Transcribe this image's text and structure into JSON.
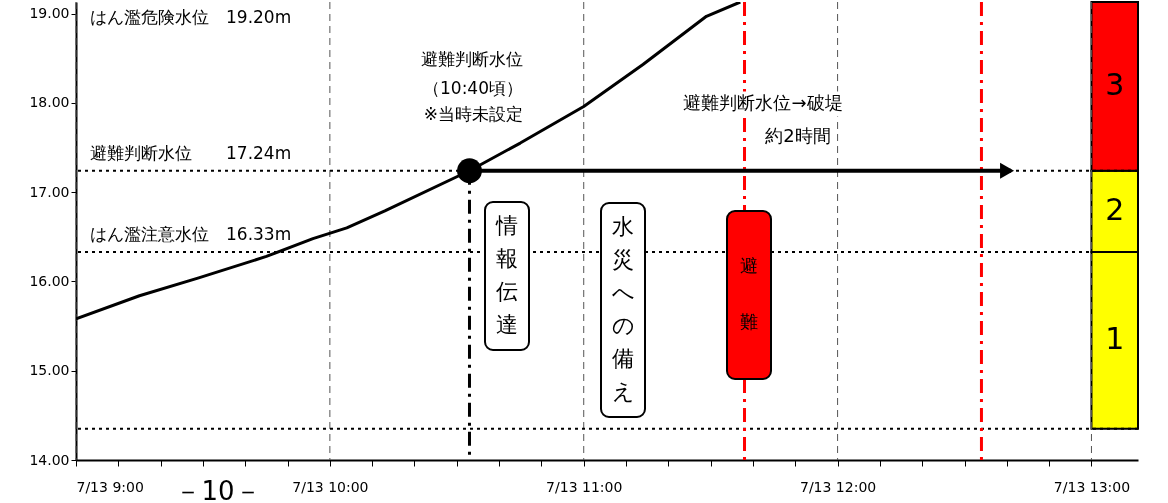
{
  "chart_data": {
    "type": "line",
    "x": [
      "--07-13T09:00",
      "--07-13T09:15",
      "--07-13T09:29",
      "--07-13T09:45",
      "--07-13T09:56",
      "--07-13T10:04",
      "--07-13T10:13",
      "--07-13T10:33",
      "--07-13T10:45",
      "--07-13T11:00",
      "--07-13T11:14",
      "--07-13T11:29",
      "--07-13T11:37"
    ],
    "series": [
      {
        "color": "#000000",
        "values": [
          15.58,
          15.84,
          16.04,
          16.28,
          16.48,
          16.6,
          16.79,
          17.24,
          17.55,
          17.96,
          18.43,
          18.97,
          19.13
        ]
      },
      {
        "type": "scatter",
        "color": "#000000",
        "x": [
          "--07-13T10:33"
        ],
        "values": [
          17.24
        ]
      }
    ],
    "xlim": [
      "--07-13T09:00",
      "--07-13T13:11"
    ],
    "ylim": [
      14,
      19.13
    ],
    "xticks": [
      {
        "value": "--07-13T09:00",
        "label": "7/13 9:00"
      },
      {
        "value": "--07-13T09:10",
        "label": null
      },
      {
        "value": "--07-13T09:20",
        "label": null
      },
      {
        "value": "--07-13T09:30",
        "label": null
      },
      {
        "value": "--07-13T09:40",
        "label": null
      },
      {
        "value": "--07-13T09:50",
        "label": null
      },
      {
        "value": "--07-13T10:00",
        "label": "7/13 10:00"
      },
      {
        "value": "--07-13T10:10",
        "label": null
      },
      {
        "value": "--07-13T10:20",
        "label": null
      },
      {
        "value": "--07-13T10:30",
        "label": null
      },
      {
        "value": "--07-13T10:40",
        "label": null
      },
      {
        "value": "--07-13T10:50",
        "label": null
      },
      {
        "value": "--07-13T11:00",
        "label": "7/13 11:00"
      },
      {
        "value": "--07-13T11:10",
        "label": null
      },
      {
        "value": "--07-13T11:20",
        "label": null
      },
      {
        "value": "--07-13T11:30",
        "label": null
      },
      {
        "value": "--07-13T11:40",
        "label": null
      },
      {
        "value": "--07-13T11:50",
        "label": null
      },
      {
        "value": "--07-13T12:00",
        "label": "7/13 12:00"
      },
      {
        "value": "--07-13T12:10",
        "label": null
      },
      {
        "value": "--07-13T12:20",
        "label": null
      },
      {
        "value": "--07-13T12:30",
        "label": null
      },
      {
        "value": "--07-13T12:40",
        "label": null
      },
      {
        "value": "--07-13T12:50",
        "label": null
      },
      {
        "value": "--07-13T13:00",
        "label": "7/13 13:00"
      }
    ],
    "yticks": [
      {
        "value": 14,
        "label": "14.00"
      },
      {
        "value": 15,
        "label": "15.00"
      },
      {
        "value": 16,
        "label": "16.00"
      },
      {
        "value": 17,
        "label": "17.00"
      },
      {
        "value": 18,
        "label": "18.00"
      },
      {
        "value": 19,
        "label": "19.00"
      }
    ],
    "grid": "x",
    "ref_lines": [
      {
        "axis": "y",
        "value": 17.24,
        "label": "避難判断水位　　17.24m",
        "color": "#000000",
        "line_style": "dotted"
      },
      {
        "axis": "y",
        "value": 16.33,
        "label": "はん濫注意水位　16.33m",
        "color": "#000000",
        "line_style": "dotted"
      },
      {
        "axis": "y",
        "value": 14.35,
        "color": "#000000",
        "line_style": "dotted"
      },
      {
        "axis": "x",
        "value": "--07-13T10:33",
        "color": "#000000",
        "line_style": "dashed"
      },
      {
        "axis": "x",
        "value": "--07-13T11:38",
        "color": "#ff0000",
        "line_style": "dashed"
      },
      {
        "axis": "x",
        "value": "--07-13T12:34",
        "color": "#ff0000",
        "line_style": "dashed"
      }
    ],
    "bands": [
      {
        "axis": "y",
        "from": 14.35,
        "to": 16.33,
        "label": "1",
        "color": "#ffff00"
      },
      {
        "axis": "y",
        "from": 16.33,
        "to": 17.24,
        "label": "2",
        "color": "#ffff00"
      },
      {
        "axis": "y",
        "from": 17.24,
        "to": 19.13,
        "label": "3",
        "color": "#ff0000"
      }
    ],
    "annotations": [
      "はん濫危険水位　19.20m",
      "－10－",
      "避難判断水位",
      "（10:40頃）",
      "※当時未設定",
      "避難判断水位→破堤",
      "約2時間",
      "情報伝達",
      "水災への備え",
      "避難"
    ]
  }
}
